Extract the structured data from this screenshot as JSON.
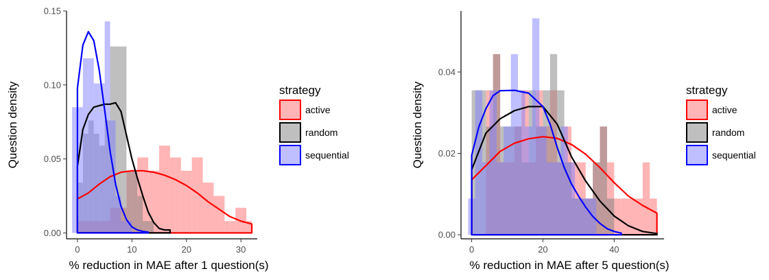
{
  "chart_data": [
    {
      "type": "area",
      "xlabel": "% reduction in MAE after 1 question(s)",
      "ylabel": "Question density",
      "xlim": [
        -2,
        33
      ],
      "ylim": [
        -0.004,
        0.15
      ],
      "xticks": [
        0,
        10,
        20,
        30
      ],
      "yticks": [
        "0.00",
        "0.05",
        "0.10",
        "0.15"
      ],
      "grid": false,
      "legend": {
        "title": "strategy",
        "placement": "right"
      },
      "series": [
        {
          "name": "active",
          "color": "#ff0000",
          "fill": "#ff6b6b",
          "hist_bin_width": 1,
          "histogram": [
            [
              0,
              0.008
            ],
            [
              1,
              0.008
            ],
            [
              2,
              0.008
            ],
            [
              3,
              0.008
            ],
            [
              4,
              0.008
            ],
            [
              5,
              0.008
            ],
            [
              6,
              0.017
            ],
            [
              7,
              0.017
            ],
            [
              8,
              0.017
            ],
            [
              9,
              0.042
            ],
            [
              10,
              0.042
            ],
            [
              11,
              0.051
            ],
            [
              12,
              0.051
            ],
            [
              13,
              0.042
            ],
            [
              14,
              0.042
            ],
            [
              15,
              0.059
            ],
            [
              16,
              0.059
            ],
            [
              17,
              0.051
            ],
            [
              18,
              0.051
            ],
            [
              19,
              0.042
            ],
            [
              20,
              0.042
            ],
            [
              21,
              0.051
            ],
            [
              22,
              0.051
            ],
            [
              23,
              0.034
            ],
            [
              24,
              0.034
            ],
            [
              25,
              0.025
            ],
            [
              26,
              0.025
            ],
            [
              27,
              0.008
            ],
            [
              28,
              0.008
            ],
            [
              29,
              0.017
            ],
            [
              30,
              0.017
            ],
            [
              31,
              0.008
            ]
          ],
          "density": [
            [
              0,
              0.023
            ],
            [
              2,
              0.027
            ],
            [
              4,
              0.033
            ],
            [
              6,
              0.038
            ],
            [
              8,
              0.041
            ],
            [
              10,
              0.042
            ],
            [
              12,
              0.042
            ],
            [
              14,
              0.041
            ],
            [
              16,
              0.039
            ],
            [
              18,
              0.036
            ],
            [
              20,
              0.032
            ],
            [
              22,
              0.027
            ],
            [
              24,
              0.021
            ],
            [
              26,
              0.016
            ],
            [
              28,
              0.011
            ],
            [
              30,
              0.008
            ],
            [
              32,
              0.006
            ]
          ]
        },
        {
          "name": "random",
          "color": "#000000",
          "fill": "#808080",
          "hist_bin_width": 1,
          "histogram": [
            [
              0,
              0.034
            ],
            [
              1,
              0.067
            ],
            [
              2,
              0.076
            ],
            [
              3,
              0.067
            ],
            [
              4,
              0.059
            ],
            [
              5,
              0.076
            ],
            [
              6,
              0.126
            ],
            [
              7,
              0.126
            ],
            [
              8,
              0.126
            ],
            [
              9,
              0.042
            ],
            [
              10,
              0.042
            ],
            [
              11,
              0.025
            ],
            [
              12,
              0.008
            ],
            [
              13,
              0.008
            ]
          ],
          "density": [
            [
              0,
              0.045
            ],
            [
              1,
              0.07
            ],
            [
              2,
              0.08
            ],
            [
              3,
              0.085
            ],
            [
              4,
              0.086
            ],
            [
              5,
              0.087
            ],
            [
              6,
              0.087
            ],
            [
              7,
              0.088
            ],
            [
              8,
              0.082
            ],
            [
              9,
              0.066
            ],
            [
              10,
              0.05
            ],
            [
              11,
              0.037
            ],
            [
              12,
              0.025
            ],
            [
              13,
              0.014
            ],
            [
              14,
              0.007
            ],
            [
              15,
              0.003
            ],
            [
              16,
              0.002
            ],
            [
              17,
              0.002
            ]
          ]
        },
        {
          "name": "sequential",
          "color": "#0000ff",
          "fill": "#8080ff",
          "hist_bin_width": 1,
          "histogram": [
            [
              -1,
              0.085
            ],
            [
              0,
              0.085
            ],
            [
              1,
              0.118
            ],
            [
              2,
              0.118
            ],
            [
              3,
              0.101
            ],
            [
              4,
              0.101
            ],
            [
              5,
              0.143
            ],
            [
              6,
              0.076
            ],
            [
              7,
              0.025
            ],
            [
              8,
              0.008
            ],
            [
              9,
              0.008
            ]
          ],
          "density": [
            [
              0,
              0.098
            ],
            [
              1,
              0.127
            ],
            [
              2,
              0.136
            ],
            [
              3,
              0.13
            ],
            [
              4,
              0.11
            ],
            [
              5,
              0.083
            ],
            [
              6,
              0.055
            ],
            [
              7,
              0.033
            ],
            [
              8,
              0.018
            ],
            [
              9,
              0.009
            ],
            [
              10,
              0.004
            ],
            [
              11,
              0.002
            ],
            [
              12,
              0.001
            ],
            [
              13,
              0.0005
            ]
          ]
        }
      ]
    },
    {
      "type": "area",
      "xlabel": "% reduction in MAE after 5 question(s)",
      "ylabel": "Question density",
      "xlim": [
        -3,
        54
      ],
      "ylim": [
        -0.001,
        0.055
      ],
      "xticks": [
        0,
        20,
        40
      ],
      "yticks": [
        "0.00",
        "0.02",
        "0.04"
      ],
      "grid": false,
      "legend": {
        "title": "strategy",
        "placement": "right"
      },
      "series": [
        {
          "name": "active",
          "color": "#ff0000",
          "fill": "#ff6b6b",
          "hist_bin_width": 2,
          "histogram": [
            [
              4,
              0.0355
            ],
            [
              6,
              0.0444
            ],
            [
              8,
              0.0178
            ],
            [
              10,
              0.0178
            ],
            [
              12,
              0.0266
            ],
            [
              14,
              0.0355
            ],
            [
              16,
              0.0178
            ],
            [
              18,
              0.0355
            ],
            [
              20,
              0.0266
            ],
            [
              22,
              0.0355
            ],
            [
              24,
              0.0178
            ],
            [
              26,
              0.0266
            ],
            [
              28,
              0.0178
            ],
            [
              30,
              0.0178
            ],
            [
              32,
              0.0089
            ],
            [
              34,
              0.0178
            ],
            [
              36,
              0.0266
            ],
            [
              38,
              0.0178
            ],
            [
              40,
              0.0089
            ],
            [
              42,
              0.0089
            ],
            [
              44,
              0.0089
            ],
            [
              46,
              0.0089
            ],
            [
              48,
              0.0178
            ],
            [
              50,
              0.0089
            ]
          ],
          "density": [
            [
              0,
              0.0135
            ],
            [
              4,
              0.017
            ],
            [
              8,
              0.0205
            ],
            [
              12,
              0.0225
            ],
            [
              16,
              0.0236
            ],
            [
              20,
              0.0241
            ],
            [
              24,
              0.0237
            ],
            [
              28,
              0.0222
            ],
            [
              32,
              0.0198
            ],
            [
              36,
              0.0165
            ],
            [
              40,
              0.0128
            ],
            [
              44,
              0.0095
            ],
            [
              48,
              0.0072
            ],
            [
              52,
              0.0053
            ]
          ]
        },
        {
          "name": "random",
          "color": "#000000",
          "fill": "#808080",
          "hist_bin_width": 2,
          "histogram": [
            [
              0,
              0.0355
            ],
            [
              2,
              0.0355
            ],
            [
              4,
              0.0266
            ],
            [
              6,
              0.0444
            ],
            [
              8,
              0.0266
            ],
            [
              10,
              0.0266
            ],
            [
              12,
              0.0266
            ],
            [
              14,
              0.0178
            ],
            [
              16,
              0.0355
            ],
            [
              18,
              0.0266
            ],
            [
              20,
              0.0355
            ],
            [
              22,
              0.0444
            ],
            [
              24,
              0.0355
            ],
            [
              26,
              0.0178
            ],
            [
              28,
              0.0089
            ],
            [
              30,
              0.0089
            ],
            [
              32,
              0.0089
            ],
            [
              34,
              0.0178
            ],
            [
              36,
              0.0266
            ],
            [
              38,
              0.0089
            ]
          ],
          "density": [
            [
              0,
              0.016
            ],
            [
              4,
              0.025
            ],
            [
              8,
              0.0285
            ],
            [
              12,
              0.0305
            ],
            [
              16,
              0.0315
            ],
            [
              20,
              0.0315
            ],
            [
              24,
              0.0272
            ],
            [
              28,
              0.0192
            ],
            [
              32,
              0.0132
            ],
            [
              36,
              0.0083
            ],
            [
              40,
              0.0046
            ],
            [
              44,
              0.0022
            ],
            [
              48,
              0.0008
            ],
            [
              52,
              0.0003
            ]
          ]
        },
        {
          "name": "sequential",
          "color": "#0000ff",
          "fill": "#8080ff",
          "hist_bin_width": 2,
          "histogram": [
            [
              -1,
              0.0089
            ],
            [
              1,
              0.0355
            ],
            [
              3,
              0.0178
            ],
            [
              5,
              0.0355
            ],
            [
              7,
              0.0178
            ],
            [
              9,
              0.0266
            ],
            [
              11,
              0.0444
            ],
            [
              13,
              0.0355
            ],
            [
              15,
              0.0266
            ],
            [
              17,
              0.0532
            ],
            [
              19,
              0.0266
            ],
            [
              21,
              0.0178
            ],
            [
              23,
              0.0178
            ],
            [
              25,
              0.0266
            ],
            [
              27,
              0.0178
            ],
            [
              29,
              0.0089
            ],
            [
              31,
              0.0089
            ],
            [
              33,
              0.0089
            ]
          ],
          "density": [
            [
              0,
              0.0195
            ],
            [
              2,
              0.0265
            ],
            [
              4,
              0.031
            ],
            [
              6,
              0.0342
            ],
            [
              8,
              0.0354
            ],
            [
              12,
              0.0355
            ],
            [
              16,
              0.0348
            ],
            [
              20,
              0.0315
            ],
            [
              22,
              0.0272
            ],
            [
              24,
              0.0215
            ],
            [
              26,
              0.0165
            ],
            [
              28,
              0.0125
            ],
            [
              30,
              0.0095
            ],
            [
              32,
              0.0068
            ],
            [
              34,
              0.0045
            ],
            [
              36,
              0.0028
            ],
            [
              38,
              0.0015
            ],
            [
              40,
              0.0008
            ],
            [
              42,
              0.0004
            ]
          ]
        }
      ]
    }
  ]
}
